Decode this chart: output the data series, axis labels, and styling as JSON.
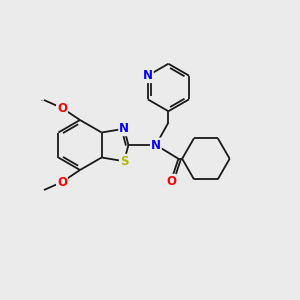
{
  "background_color": "#ebebeb",
  "bond_color": "#1a1a1a",
  "atom_colors": {
    "N": "#0000ff",
    "S": "#b8b800",
    "O": "#ff0000",
    "C": "#1a1a1a"
  },
  "figsize": [
    3.0,
    3.0
  ],
  "dpi": 100,
  "lw": 1.3
}
